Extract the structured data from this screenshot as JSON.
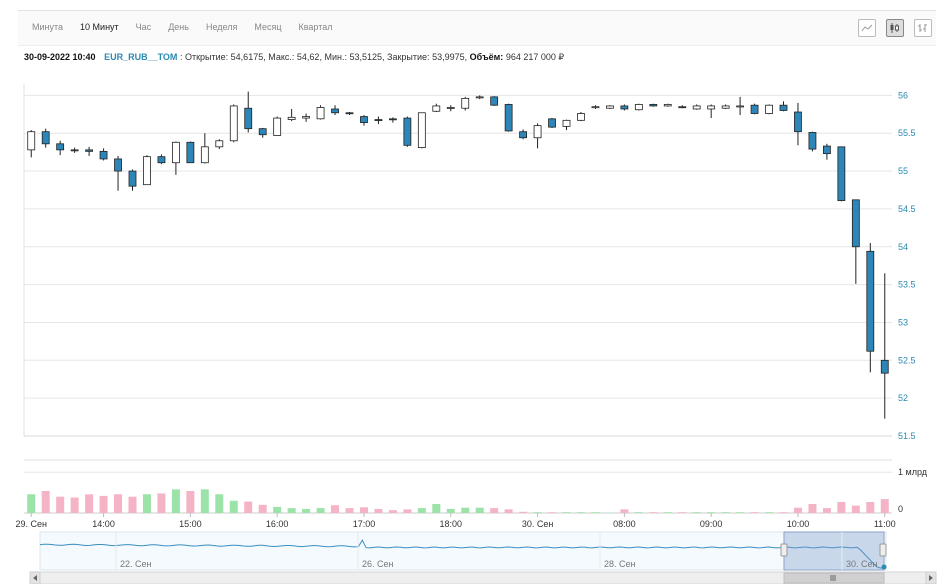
{
  "toolbar": {
    "tabs": [
      {
        "label": "Минута",
        "active": false
      },
      {
        "label": "10 Минут",
        "active": true
      },
      {
        "label": "Час",
        "active": false
      },
      {
        "label": "День",
        "active": false
      },
      {
        "label": "Неделя",
        "active": false
      },
      {
        "label": "Месяц",
        "active": false
      },
      {
        "label": "Квартал",
        "active": false
      }
    ],
    "icons": [
      "line-chart-icon",
      "candlestick-chart-icon",
      "ohlc-bar-chart-icon"
    ]
  },
  "info": {
    "datetime": "30-09-2022 10:40",
    "ticker": "EUR_RUB__TOM",
    "open_label": "Открытие:",
    "open": "54,6175",
    "high_label": "Макс.:",
    "high": "54,62",
    "low_label": "Мин.:",
    "low": "53,5125",
    "close_label": "Закрытие:",
    "close": "53,9975",
    "volume_label": "Объём:",
    "volume": "964 217 000 ₽"
  },
  "colors": {
    "up": "#ffffff",
    "down": "#2e86b8",
    "vol_up": "#9be3a8",
    "vol_down": "#f5b3c6",
    "axis_text": "#2a8ab0",
    "grid": "#e6e6e6"
  },
  "chart_data": {
    "type": "candlestick",
    "ylim": [
      51.5,
      56.15
    ],
    "yticks": [
      "56",
      "55.5",
      "55",
      "54.5",
      "54",
      "53.5",
      "53",
      "52.5",
      "52",
      "51.5"
    ],
    "volume_ticks": [
      "1 млрд",
      "0"
    ],
    "xticks": [
      {
        "label": "29. Сен",
        "index": 0
      },
      {
        "label": "14:00",
        "index": 5
      },
      {
        "label": "15:00",
        "index": 11
      },
      {
        "label": "16:00",
        "index": 17
      },
      {
        "label": "17:00",
        "index": 23
      },
      {
        "label": "18:00",
        "index": 29
      },
      {
        "label": "30. Сен",
        "index": 35
      },
      {
        "label": "08:00",
        "index": 41
      },
      {
        "label": "09:00",
        "index": 47
      },
      {
        "label": "10:00",
        "index": 53
      },
      {
        "label": "11:00",
        "index": 59
      }
    ],
    "candles": [
      [
        55.28,
        55.52,
        55.54,
        55.18
      ],
      [
        55.52,
        55.36,
        55.56,
        55.31
      ],
      [
        55.36,
        55.28,
        55.4,
        55.21
      ],
      [
        55.28,
        55.27,
        55.31,
        55.24
      ],
      [
        55.28,
        55.26,
        55.32,
        55.2
      ],
      [
        55.26,
        55.16,
        55.3,
        55.14
      ],
      [
        55.16,
        55.0,
        55.2,
        54.74
      ],
      [
        55.0,
        54.8,
        55.02,
        54.74
      ],
      [
        54.82,
        55.19,
        55.21,
        54.82
      ],
      [
        55.19,
        55.11,
        55.22,
        55.09
      ],
      [
        55.11,
        55.38,
        55.39,
        54.95
      ],
      [
        55.38,
        55.11,
        55.39,
        55.11
      ],
      [
        55.11,
        55.32,
        55.5,
        55.1
      ],
      [
        55.32,
        55.4,
        55.42,
        55.29
      ],
      [
        55.4,
        55.86,
        55.88,
        55.38
      ],
      [
        55.83,
        55.56,
        56.05,
        55.51
      ],
      [
        55.56,
        55.48,
        55.57,
        55.44
      ],
      [
        55.47,
        55.7,
        55.72,
        55.47
      ],
      [
        55.68,
        55.71,
        55.82,
        55.66
      ],
      [
        55.7,
        55.72,
        55.76,
        55.65
      ],
      [
        55.69,
        55.84,
        55.87,
        55.68
      ],
      [
        55.82,
        55.77,
        55.87,
        55.74
      ],
      [
        55.77,
        55.76,
        55.78,
        55.74
      ],
      [
        55.72,
        55.64,
        55.74,
        55.6
      ],
      [
        55.68,
        55.67,
        55.72,
        55.62
      ],
      [
        55.69,
        55.68,
        55.71,
        55.64
      ],
      [
        55.7,
        55.34,
        55.72,
        55.32
      ],
      [
        55.31,
        55.77,
        55.77,
        55.3
      ],
      [
        55.79,
        55.86,
        55.89,
        55.78
      ],
      [
        55.83,
        55.84,
        55.87,
        55.79
      ],
      [
        55.83,
        55.96,
        55.98,
        55.8
      ],
      [
        55.97,
        55.98,
        56.0,
        55.95
      ],
      [
        55.98,
        55.87,
        55.99,
        55.86
      ],
      [
        55.88,
        55.53,
        55.89,
        55.52
      ],
      [
        55.52,
        55.44,
        55.55,
        55.42
      ],
      [
        55.44,
        55.6,
        55.63,
        55.3
      ],
      [
        55.69,
        55.58,
        55.7,
        55.57
      ],
      [
        55.59,
        55.67,
        55.68,
        55.54
      ],
      [
        55.67,
        55.76,
        55.78,
        55.66
      ],
      [
        55.84,
        55.85,
        55.87,
        55.82
      ],
      [
        55.83,
        55.86,
        55.87,
        55.82
      ],
      [
        55.86,
        55.82,
        55.88,
        55.8
      ],
      [
        55.81,
        55.88,
        55.89,
        55.8
      ],
      [
        55.88,
        55.86,
        55.89,
        55.85
      ],
      [
        55.86,
        55.88,
        55.89,
        55.85
      ],
      [
        55.85,
        55.84,
        55.87,
        55.83
      ],
      [
        55.82,
        55.86,
        55.88,
        55.81
      ],
      [
        55.82,
        55.86,
        55.88,
        55.7
      ],
      [
        55.83,
        55.86,
        55.88,
        55.82
      ],
      [
        55.85,
        55.86,
        55.98,
        55.74
      ],
      [
        55.87,
        55.76,
        55.89,
        55.75
      ],
      [
        55.76,
        55.87,
        55.88,
        55.75
      ],
      [
        55.87,
        55.8,
        55.92,
        55.79
      ],
      [
        55.78,
        55.52,
        55.9,
        55.34
      ],
      [
        55.51,
        55.29,
        55.52,
        55.26
      ],
      [
        55.33,
        55.23,
        55.36,
        55.15
      ],
      [
        55.32,
        54.61,
        55.32,
        54.6
      ],
      [
        54.62,
        54.0,
        54.62,
        53.51
      ],
      [
        53.94,
        52.62,
        54.05,
        52.34
      ],
      [
        52.5,
        52.33,
        53.65,
        51.73
      ]
    ],
    "volumes": [
      0.46,
      0.54,
      0.4,
      0.38,
      0.46,
      0.42,
      0.46,
      0.4,
      0.46,
      0.48,
      0.58,
      0.54,
      0.58,
      0.46,
      0.3,
      0.28,
      0.2,
      0.15,
      0.12,
      0.1,
      0.12,
      0.19,
      0.12,
      0.14,
      0.1,
      0.07,
      0.09,
      0.12,
      0.22,
      0.1,
      0.13,
      0.13,
      0.12,
      0.09,
      0.03,
      0.02,
      0.02,
      0.02,
      0.02,
      0.02,
      0.01,
      0.09,
      0.02,
      0.02,
      0.02,
      0.02,
      0.02,
      0.02,
      0.02,
      0.02,
      0.02,
      0.02,
      0.02,
      0.13,
      0.22,
      0.12,
      0.27,
      0.18,
      0.27,
      0.34
    ]
  },
  "navigator": {
    "labels": [
      "22. Сен",
      "26. Сен",
      "28. Сен",
      "30. Сен"
    ],
    "scroll_left_icon": "scroll-left-arrow-icon",
    "scroll_right_icon": "scroll-right-arrow-icon",
    "grip_icon": "scrollbar-grip-icon"
  }
}
